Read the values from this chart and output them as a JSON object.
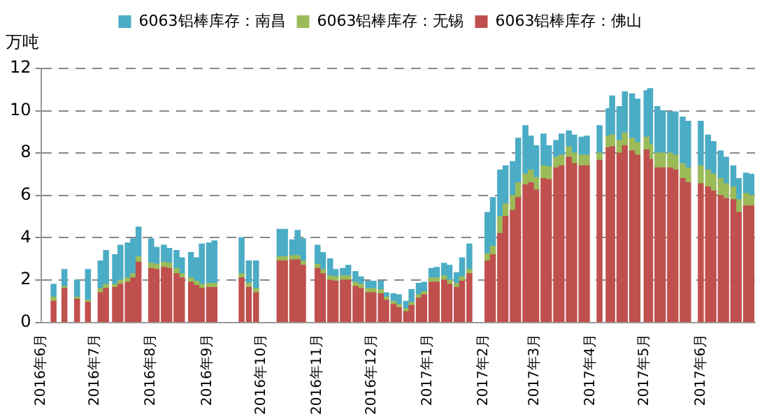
{
  "chart_data": {
    "type": "bar",
    "stacked": true,
    "ylabel": "万吨",
    "legend": "top",
    "grid": "y",
    "x": [
      "2016-06-08",
      "2016-06-14",
      "2016-06-21",
      "2016-06-27",
      "2016-07-04",
      "2016-07-07",
      "2016-07-12",
      "2016-07-15",
      "2016-07-19",
      "2016-07-22",
      "2016-07-25",
      "2016-08-01",
      "2016-08-04",
      "2016-08-08",
      "2016-08-11",
      "2016-08-15",
      "2016-08-18",
      "2016-08-23",
      "2016-08-26",
      "2016-08-29",
      "2016-09-02",
      "2016-09-05",
      "2016-09-20",
      "2016-09-24",
      "2016-09-28",
      "2016-10-11",
      "2016-10-14",
      "2016-10-18",
      "2016-10-21",
      "2016-10-24",
      "2016-11-01",
      "2016-11-04",
      "2016-11-08",
      "2016-11-11",
      "2016-11-15",
      "2016-11-18",
      "2016-11-22",
      "2016-11-25",
      "2016-11-29",
      "2016-12-02",
      "2016-12-06",
      "2016-12-09",
      "2016-12-13",
      "2016-12-16",
      "2016-12-20",
      "2016-12-23",
      "2016-12-27",
      "2016-12-30",
      "2017-01-03",
      "2017-01-06",
      "2017-01-10",
      "2017-01-13",
      "2017-01-17",
      "2017-01-20",
      "2017-01-24",
      "2017-02-03",
      "2017-02-06",
      "2017-02-10",
      "2017-02-13",
      "2017-02-17",
      "2017-02-20",
      "2017-02-24",
      "2017-02-27",
      "2017-03-02",
      "2017-03-06",
      "2017-03-09",
      "2017-03-13",
      "2017-03-16",
      "2017-03-20",
      "2017-03-23",
      "2017-03-27",
      "2017-03-30",
      "2017-04-06",
      "2017-04-11",
      "2017-04-13",
      "2017-04-17",
      "2017-04-20",
      "2017-04-24",
      "2017-04-27",
      "2017-05-02",
      "2017-05-04",
      "2017-05-08",
      "2017-05-11",
      "2017-05-15",
      "2017-05-18",
      "2017-05-22",
      "2017-05-25",
      "2017-06-01",
      "2017-06-05",
      "2017-06-08",
      "2017-06-12",
      "2017-06-15",
      "2017-06-19",
      "2017-06-22",
      "2017-06-26",
      "2017-06-29"
    ],
    "series": [
      {
        "name": "6063铝棒库存：佛山",
        "color": "#c0504d",
        "values": [
          1.0,
          1.6,
          1.1,
          0.95,
          1.4,
          1.6,
          1.65,
          1.8,
          1.9,
          2.1,
          2.85,
          2.55,
          2.5,
          2.6,
          2.55,
          2.3,
          2.1,
          1.9,
          1.75,
          1.6,
          1.65,
          1.65,
          2.1,
          1.65,
          1.4,
          2.9,
          2.9,
          2.95,
          2.95,
          2.7,
          2.55,
          2.3,
          2.0,
          1.95,
          2.0,
          2.0,
          1.7,
          1.6,
          1.4,
          1.4,
          1.35,
          1.05,
          0.85,
          0.7,
          0.5,
          0.8,
          1.15,
          1.3,
          1.9,
          1.9,
          2.0,
          1.8,
          1.65,
          1.95,
          2.3,
          2.9,
          3.2,
          4.2,
          5.0,
          5.3,
          5.9,
          6.5,
          6.6,
          6.25,
          6.8,
          6.75,
          7.3,
          7.4,
          7.8,
          7.5,
          7.4,
          7.4,
          7.65,
          8.25,
          8.3,
          8.0,
          8.35,
          8.1,
          7.9,
          8.15,
          7.7,
          7.3,
          7.3,
          7.3,
          7.2,
          6.8,
          6.6,
          6.55,
          6.4,
          6.2,
          6.0,
          5.85,
          5.8,
          5.2,
          5.5,
          5.5
        ]
      },
      {
        "name": "6063铝棒库存：无锡",
        "color": "#9bbb59",
        "values": [
          0.2,
          0.1,
          0.1,
          0.1,
          0.2,
          0.2,
          0.15,
          0.2,
          0.2,
          0.2,
          0.25,
          0.25,
          0.25,
          0.25,
          0.25,
          0.25,
          0.2,
          0.2,
          0.2,
          0.2,
          0.2,
          0.2,
          0.2,
          0.2,
          0.2,
          0.2,
          0.2,
          0.2,
          0.2,
          0.2,
          0.2,
          0.2,
          0.2,
          0.2,
          0.2,
          0.2,
          0.2,
          0.2,
          0.2,
          0.2,
          0.2,
          0.15,
          0.15,
          0.15,
          0.15,
          0.15,
          0.15,
          0.15,
          0.2,
          0.2,
          0.2,
          0.2,
          0.2,
          0.2,
          0.2,
          0.35,
          0.4,
          0.8,
          0.6,
          0.7,
          0.7,
          0.5,
          0.6,
          0.6,
          0.6,
          0.6,
          0.5,
          0.5,
          0.5,
          0.5,
          0.5,
          0.5,
          0.35,
          0.55,
          0.55,
          0.6,
          0.6,
          0.6,
          0.6,
          0.6,
          0.7,
          0.7,
          0.7,
          0.7,
          0.7,
          0.7,
          0.7,
          0.85,
          0.8,
          0.8,
          0.8,
          0.7,
          0.6,
          0.6,
          0.6,
          0.5
        ]
      },
      {
        "name": "6063铝棒库存：南昌",
        "color": "#4bacc6",
        "values": [
          0.6,
          0.8,
          0.8,
          1.45,
          1.3,
          1.6,
          1.4,
          1.65,
          1.65,
          1.65,
          1.4,
          1.15,
          0.8,
          0.8,
          0.7,
          0.85,
          0.75,
          1.2,
          1.1,
          1.9,
          1.9,
          2.0,
          1.7,
          1.05,
          1.3,
          1.3,
          1.3,
          0.75,
          1.2,
          1.05,
          0.9,
          0.8,
          0.8,
          0.35,
          0.35,
          0.5,
          0.5,
          0.35,
          0.35,
          0.35,
          0.4,
          0.2,
          0.35,
          0.45,
          0.35,
          0.6,
          0.55,
          0.45,
          0.45,
          0.5,
          0.6,
          0.7,
          0.5,
          0.9,
          1.2,
          1.95,
          2.3,
          2.2,
          1.8,
          1.6,
          2.1,
          2.3,
          1.6,
          1.5,
          1.5,
          1.0,
          0.8,
          1.0,
          0.75,
          0.85,
          0.85,
          0.9,
          1.3,
          1.3,
          1.85,
          1.6,
          1.95,
          2.1,
          2.05,
          2.2,
          2.65,
          2.2,
          2.0,
          1.95,
          2.05,
          2.2,
          2.2,
          2.1,
          1.65,
          1.55,
          1.3,
          1.25,
          1.0,
          1.0,
          0.95,
          1.0
        ]
      }
    ],
    "xlim": [
      "2016-06-01",
      "2017-07-01"
    ],
    "xticks": [
      {
        "value": "2016-06",
        "label": "2016年6月"
      },
      {
        "value": "2016-07",
        "label": "2016年7月"
      },
      {
        "value": "2016-08",
        "label": "2016年8月"
      },
      {
        "value": "2016-09",
        "label": "2016年9月"
      },
      {
        "value": "2016-10",
        "label": "2016年10月"
      },
      {
        "value": "2016-11",
        "label": "2016年11月"
      },
      {
        "value": "2016-12",
        "label": "2016年12月"
      },
      {
        "value": "2017-01",
        "label": "2017年1月"
      },
      {
        "value": "2017-02",
        "label": "2017年2月"
      },
      {
        "value": "2017-03",
        "label": "2017年3月"
      },
      {
        "value": "2017-04",
        "label": "2017年4月"
      },
      {
        "value": "2017-05",
        "label": "2017年5月"
      },
      {
        "value": "2017-06",
        "label": "2017年6月"
      }
    ],
    "ylim": [
      0,
      12
    ],
    "yticks": [
      0,
      2,
      4,
      6,
      8,
      10,
      12
    ]
  }
}
